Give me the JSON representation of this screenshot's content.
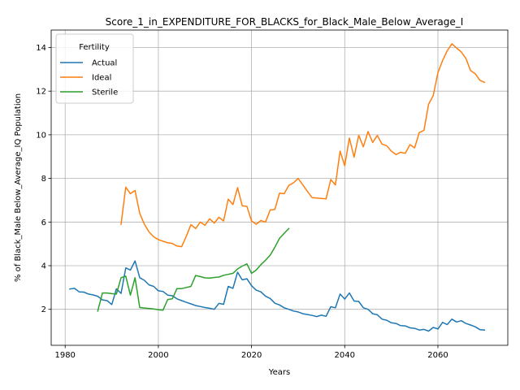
{
  "chart_data": {
    "type": "line",
    "title": "Score_1_in_EXPENDITURE_FOR_BLACKS_for_Black_Male_Below_Average_I",
    "xlabel": "Years",
    "ylabel": "% of Black_Male Below_Average_IQ Population",
    "xlim": [
      1977,
      2075
    ],
    "ylim": [
      0.35,
      14.8
    ],
    "xticks": [
      1980,
      2000,
      2020,
      2040,
      2060
    ],
    "yticks": [
      2,
      4,
      6,
      8,
      10,
      12,
      14
    ],
    "grid": true,
    "legend": {
      "title": "Fertility",
      "placement": "top-left"
    },
    "series": [
      {
        "name": "Actual",
        "color": "#1f77b4",
        "x": [
          1981,
          1982,
          1983,
          1984,
          1985,
          1986,
          1987,
          1988,
          1989,
          1990,
          1991,
          1992,
          1993,
          1994,
          1995,
          1996,
          1997,
          1998,
          1999,
          2000,
          2001,
          2002,
          2003,
          2004,
          2005,
          2006,
          2007,
          2008,
          2009,
          2010,
          2011,
          2012,
          2013,
          2014,
          2015,
          2016,
          2017,
          2018,
          2019,
          2020,
          2021,
          2022,
          2023,
          2024,
          2025,
          2026,
          2027,
          2028,
          2029,
          2030,
          2031,
          2032,
          2033,
          2034,
          2035,
          2036,
          2037,
          2038,
          2039,
          2040,
          2041,
          2042,
          2043,
          2044,
          2045,
          2046,
          2047,
          2048,
          2049,
          2050,
          2051,
          2052,
          2053,
          2054,
          2055,
          2056,
          2057,
          2058,
          2059,
          2060,
          2061,
          2062,
          2063,
          2064,
          2065,
          2066,
          2067,
          2068,
          2069,
          2070
        ],
        "y": [
          2.93,
          2.96,
          2.8,
          2.79,
          2.7,
          2.66,
          2.6,
          2.43,
          2.4,
          2.22,
          2.94,
          2.73,
          3.9,
          3.8,
          4.22,
          3.45,
          3.33,
          3.12,
          3.05,
          2.85,
          2.82,
          2.65,
          2.62,
          2.48,
          2.4,
          2.32,
          2.25,
          2.17,
          2.13,
          2.08,
          2.05,
          2.0,
          2.27,
          2.23,
          3.05,
          2.96,
          3.7,
          3.35,
          3.4,
          3.08,
          2.88,
          2.8,
          2.6,
          2.5,
          2.28,
          2.2,
          2.07,
          2.0,
          1.92,
          1.88,
          1.8,
          1.76,
          1.72,
          1.67,
          1.73,
          1.68,
          2.12,
          2.07,
          2.7,
          2.47,
          2.75,
          2.38,
          2.36,
          2.07,
          2.0,
          1.8,
          1.75,
          1.55,
          1.5,
          1.38,
          1.35,
          1.25,
          1.24,
          1.15,
          1.13,
          1.05,
          1.08,
          1.0,
          1.17,
          1.1,
          1.4,
          1.3,
          1.55,
          1.42,
          1.48,
          1.35,
          1.28,
          1.2,
          1.07,
          1.05
        ]
      },
      {
        "name": "Ideal",
        "color": "#ff7f0e",
        "x": [
          1992,
          1993,
          1994,
          1995,
          1996,
          1997,
          1998,
          1999,
          2000,
          2001,
          2002,
          2003,
          2004,
          2005,
          2006,
          2007,
          2008,
          2009,
          2010,
          2011,
          2012,
          2013,
          2014,
          2015,
          2016,
          2017,
          2018,
          2019,
          2020,
          2021,
          2022,
          2023,
          2024,
          2025,
          2026,
          2027,
          2028,
          2029,
          2030,
          2031,
          2032,
          2033,
          2034,
          2035,
          2036,
          2037,
          2038,
          2039,
          2040,
          2041,
          2042,
          2043,
          2044,
          2045,
          2046,
          2047,
          2048,
          2049,
          2050,
          2051,
          2052,
          2053,
          2054,
          2055,
          2056,
          2057,
          2058,
          2059,
          2060,
          2061,
          2062,
          2063,
          2064,
          2065,
          2066,
          2067,
          2068,
          2069,
          2070
        ],
        "y": [
          5.9,
          7.6,
          7.3,
          7.45,
          6.4,
          5.9,
          5.55,
          5.32,
          5.2,
          5.12,
          5.05,
          5.02,
          4.9,
          4.87,
          5.35,
          5.88,
          5.7,
          6.0,
          5.85,
          6.15,
          5.95,
          6.22,
          6.05,
          7.05,
          6.8,
          7.58,
          6.75,
          6.72,
          6.05,
          5.9,
          6.07,
          6.0,
          6.55,
          6.58,
          7.32,
          7.3,
          7.68,
          7.8,
          8.0,
          7.7,
          7.4,
          7.12,
          7.1,
          7.08,
          7.06,
          7.95,
          7.7,
          9.25,
          8.58,
          9.85,
          8.97,
          9.98,
          9.45,
          10.15,
          9.65,
          9.97,
          9.57,
          9.5,
          9.25,
          9.1,
          9.2,
          9.15,
          9.55,
          9.4,
          10.1,
          10.2,
          11.4,
          11.8,
          12.85,
          13.4,
          13.85,
          14.17,
          13.98,
          13.8,
          13.5,
          12.95,
          12.8,
          12.5,
          12.4
        ]
      },
      {
        "name": "Sterile",
        "color": "#2ca02c",
        "x": [
          1987,
          1988,
          1989,
          1990,
          1991,
          1992,
          1993,
          1994,
          1995,
          1996,
          1997,
          1998,
          1999,
          2000,
          2001,
          2002,
          2003,
          2004,
          2005,
          2006,
          2007,
          2008,
          2009,
          2010,
          2011,
          2012,
          2013,
          2014,
          2015,
          2016,
          2017,
          2018,
          2019,
          2020,
          2021,
          2022,
          2023,
          2024,
          2025,
          2026,
          2027,
          2028
        ],
        "y": [
          1.92,
          2.75,
          2.75,
          2.72,
          2.7,
          3.45,
          3.52,
          2.65,
          3.45,
          2.08,
          2.06,
          2.04,
          2.02,
          1.98,
          1.96,
          2.45,
          2.48,
          2.95,
          2.95,
          3.0,
          3.05,
          3.55,
          3.5,
          3.44,
          3.43,
          3.46,
          3.48,
          3.56,
          3.6,
          3.65,
          3.85,
          3.98,
          4.08,
          3.65,
          3.8,
          4.05,
          4.25,
          4.48,
          4.85,
          5.25,
          5.48,
          5.7
        ]
      }
    ]
  }
}
